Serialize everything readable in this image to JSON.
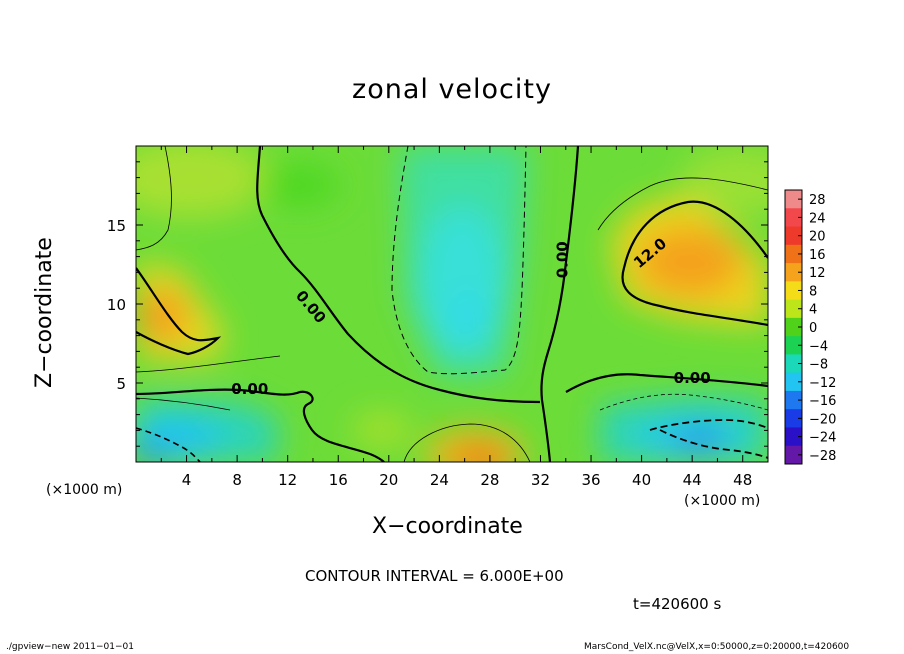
{
  "header": {
    "title": "zonal velocity"
  },
  "axes": {
    "xlabel": "X−coordinate",
    "ylabel": "Z−coordinate",
    "x_unit_left": "(×1000 m)",
    "x_unit_right": "(×1000 m)"
  },
  "notes": {
    "contour_interval": "CONTOUR INTERVAL = 6.000E+00",
    "time": "t=420600 s"
  },
  "footer": {
    "left": "./gpview−new   2011−01−01",
    "right": "MarsCond_VelX.nc@VelX,x=0:50000,z=0:20000,t=420600"
  },
  "chart_data": {
    "type": "heatmap",
    "title": "zonal velocity",
    "xlabel": "X−coordinate",
    "ylabel": "Z−coordinate",
    "xlim": [
      0,
      50
    ],
    "ylim": [
      0,
      20
    ],
    "x_ticks": [
      4,
      8,
      12,
      16,
      20,
      24,
      28,
      32,
      36,
      40,
      44,
      48
    ],
    "y_ticks": [
      5,
      10,
      15
    ],
    "colorbar": {
      "ticks": [
        28,
        24,
        20,
        16,
        12,
        8,
        4,
        0,
        -4,
        -8,
        -12,
        -16,
        -20,
        -24,
        -28
      ],
      "tick_labels": [
        "28",
        "24",
        "20",
        "16",
        "12",
        "8",
        "4",
        "0",
        "−4",
        "−8",
        "−12",
        "−16",
        "−20",
        "−24",
        "−28"
      ],
      "colors": [
        "#ee8a8a",
        "#f2484c",
        "#ee3a2a",
        "#f07218",
        "#f5a21c",
        "#f4dc18",
        "#bce61a",
        "#50d21a",
        "#1cd252",
        "#1ad8b8",
        "#22c4f2",
        "#1e78f0",
        "#1a3ce6",
        "#2a10c6",
        "#6418a8"
      ]
    },
    "contour_labels": [
      {
        "text": "0.00",
        "x": 13.8,
        "z": 9.8,
        "angle": 50
      },
      {
        "text": "0.00",
        "x": 9.0,
        "z": 4.6,
        "angle": 0
      },
      {
        "text": "0.00",
        "x": 33.8,
        "z": 12.8,
        "angle": -90
      },
      {
        "text": "0.00",
        "x": 44.0,
        "z": 5.3,
        "angle": 0
      },
      {
        "text": "12.0",
        "x": 40.7,
        "z": 13.2,
        "angle": -40
      }
    ],
    "features": [
      {
        "x": 44,
        "z": 12,
        "value": 16
      },
      {
        "x": 2,
        "z": 9,
        "value": 14
      },
      {
        "x": 27,
        "z": 0.5,
        "value": 18
      },
      {
        "x": 25,
        "z": 11,
        "value": -10
      },
      {
        "x": 3,
        "z": 1,
        "value": -14
      },
      {
        "x": 44,
        "z": 2,
        "value": -14
      },
      {
        "x": 10,
        "z": 17,
        "value": 6
      },
      {
        "x": 47,
        "z": 17,
        "value": 4
      },
      {
        "x": 17,
        "z": 2,
        "value": 3
      }
    ]
  }
}
